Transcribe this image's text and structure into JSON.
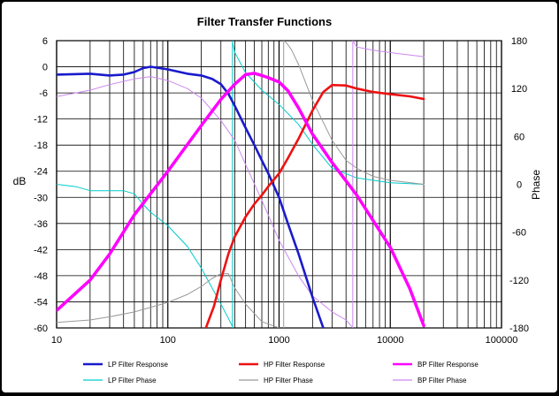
{
  "chart_data": {
    "type": "line",
    "title": "Filter Transfer Functions",
    "xlabel": "",
    "ylabel": "dB",
    "y2label": "Phase",
    "x_scale": "log",
    "xlim": [
      10,
      100000
    ],
    "ylim": [
      -60,
      6
    ],
    "y2lim": [
      -180,
      180
    ],
    "x_ticks": [
      "10",
      "100",
      "1000",
      "10000",
      "100000"
    ],
    "y_ticks": [
      "6",
      "0",
      "-6",
      "-12",
      "-18",
      "-24",
      "-30",
      "-36",
      "-42",
      "-48",
      "-54",
      "-60"
    ],
    "y2_ticks": [
      "180",
      "120",
      "60",
      "0",
      "-60",
      "-120",
      "-180"
    ],
    "grid": true,
    "legend_position": "bottom",
    "series": [
      {
        "name": "LP Filter Response",
        "axis": "left",
        "color": "#1a1acc",
        "width": 2.6,
        "x": [
          10,
          20,
          30,
          40,
          50,
          60,
          70,
          100,
          150,
          200,
          250,
          300,
          350,
          400,
          500,
          600,
          700,
          800,
          1000,
          1200,
          1500,
          2000,
          2500
        ],
        "y": [
          -1.8,
          -1.6,
          -2.0,
          -1.8,
          -1.2,
          -0.3,
          0.0,
          -0.6,
          -1.6,
          -2.0,
          -2.8,
          -4.0,
          -6.2,
          -9.0,
          -14.0,
          -18.0,
          -21.5,
          -24.5,
          -30.0,
          -36.0,
          -43.0,
          -53.0,
          -60.0
        ]
      },
      {
        "name": "HP Filter Response",
        "axis": "left",
        "color": "#ee1111",
        "width": 2.6,
        "x": [
          220,
          260,
          300,
          350,
          400,
          500,
          600,
          700,
          800,
          1000,
          1200,
          1500,
          2000,
          2500,
          3000,
          4000,
          5000,
          7000,
          10000,
          15000,
          20000
        ],
        "y": [
          -60,
          -55,
          -49,
          -43,
          -39,
          -34.5,
          -31.5,
          -29.5,
          -27.5,
          -24.5,
          -21,
          -16.5,
          -10,
          -5.8,
          -4.2,
          -4.3,
          -5.0,
          -5.8,
          -6.3,
          -6.8,
          -7.4
        ]
      },
      {
        "name": "BP Filter Response",
        "axis": "left",
        "color": "#ff00ff",
        "width": 3.5,
        "x": [
          10,
          20,
          30,
          50,
          100,
          200,
          300,
          400,
          500,
          600,
          700,
          800,
          1000,
          1200,
          1500,
          2000,
          3000,
          5000,
          10000,
          15000,
          20000
        ],
        "y": [
          -56,
          -49,
          -43,
          -34,
          -24,
          -13.5,
          -7.5,
          -4.0,
          -1.8,
          -1.5,
          -2.0,
          -2.5,
          -3.5,
          -5.5,
          -9.5,
          -15.5,
          -22.0,
          -29.5,
          -41.5,
          -51.0,
          -59.5
        ]
      },
      {
        "name": "LP Filter Phase",
        "axis": "right",
        "color": "#00cccc",
        "width": 1,
        "x": [
          10,
          15,
          20,
          30,
          40,
          50,
          60,
          70,
          100,
          150,
          200,
          250,
          300,
          350,
          380,
          381,
          400,
          500,
          700,
          1000,
          1500,
          2000,
          3000,
          5000,
          10000,
          20000
        ],
        "y": [
          0,
          -3,
          -8,
          -8,
          -8,
          -12,
          -25,
          -35,
          -52,
          -78,
          -105,
          -130,
          -150,
          -168,
          -178,
          178,
          165,
          140,
          118,
          100,
          75,
          50,
          20,
          8,
          2,
          0
        ]
      },
      {
        "name": "HP Filter Phase",
        "axis": "right",
        "color": "#999999",
        "width": 1,
        "x": [
          10,
          20,
          30,
          50,
          100,
          150,
          200,
          250,
          300,
          350,
          400,
          500,
          700,
          1000,
          1100,
          1150,
          1200,
          1300,
          1500,
          2000,
          3000,
          4000,
          5000,
          7000,
          10000,
          20000
        ],
        "y": [
          -173,
          -170,
          -166,
          -160,
          -148,
          -138,
          -128,
          -118,
          -112,
          -112,
          -130,
          -150,
          -172,
          -180,
          180,
          178,
          175,
          168,
          150,
          105,
          55,
          30,
          20,
          10,
          5,
          0
        ]
      },
      {
        "name": "BP Filter Phase",
        "axis": "right",
        "color": "#cc88ee",
        "width": 1,
        "x": [
          10,
          20,
          30,
          50,
          70,
          100,
          150,
          200,
          300,
          400,
          500,
          700,
          1000,
          1500,
          2000,
          3000,
          4000,
          4500,
          4600,
          5000,
          7000,
          10000,
          20000
        ],
        "y": [
          110,
          118,
          125,
          132,
          135,
          130,
          120,
          108,
          80,
          55,
          25,
          -20,
          -70,
          -115,
          -140,
          -160,
          -170,
          -178,
          180,
          172,
          168,
          165,
          160
        ]
      }
    ]
  }
}
